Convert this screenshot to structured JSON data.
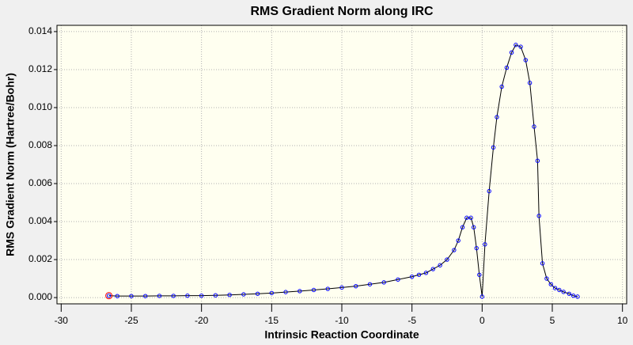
{
  "chart_data": {
    "type": "line",
    "title": "RMS Gradient Norm along IRC",
    "xlabel": "Intrinsic Reaction Coordinate",
    "ylabel": "RMS Gradient Norm (Hartree/Bohr)",
    "x": [
      -26.6,
      -26,
      -25,
      -24,
      -23,
      -22,
      -21,
      -20,
      -19,
      -18,
      -17,
      -16,
      -15,
      -14,
      -13,
      -12,
      -11,
      -10,
      -9,
      -8,
      -7,
      -6,
      -5,
      -4.5,
      -4,
      -3.5,
      -3,
      -2.5,
      -2,
      -1.7,
      -1.4,
      -1.1,
      -0.8,
      -0.6,
      -0.4,
      -0.2,
      0,
      0.2,
      0.5,
      0.8,
      1.05,
      1.4,
      1.75,
      2.1,
      2.4,
      2.75,
      3.1,
      3.4,
      3.7,
      3.95,
      4.05,
      4.3,
      4.6,
      4.9,
      5.2,
      5.5,
      5.8,
      6.2,
      6.5,
      6.8
    ],
    "series": [
      {
        "name": "RMS Gradient Norm",
        "color": "#0000ff",
        "line_color": "#000000",
        "values": [
          0.0001,
          8e-05,
          8e-05,
          8e-05,
          9e-05,
          9e-05,
          0.0001,
          0.0001,
          0.00012,
          0.00014,
          0.00017,
          0.0002,
          0.00024,
          0.00029,
          0.00034,
          0.0004,
          0.00046,
          0.00053,
          0.0006,
          0.0007,
          0.0008,
          0.00095,
          0.0011,
          0.0012,
          0.0013,
          0.0015,
          0.0017,
          0.002,
          0.0025,
          0.003,
          0.0037,
          0.0042,
          0.0042,
          0.0037,
          0.0026,
          0.0012,
          5e-05,
          0.0028,
          0.0056,
          0.0079,
          0.0095,
          0.0111,
          0.0121,
          0.0129,
          0.0133,
          0.0132,
          0.0125,
          0.0113,
          0.009,
          0.0072,
          0.0043,
          0.0018,
          0.001,
          0.0007,
          0.0005,
          0.0004,
          0.0003,
          0.0002,
          0.0001,
          5e-05
        ]
      }
    ],
    "highlight_color": "#ff0000",
    "xlim": [
      -30.3,
      10.3
    ],
    "xticks": [
      -30,
      -25,
      -20,
      -15,
      -10,
      -5,
      0,
      5,
      10
    ],
    "ylim": [
      -0.00033,
      0.01433
    ],
    "yticks": [
      {
        "value": 0,
        "label": "0.000"
      },
      {
        "value": 0.002,
        "label": "0.002"
      },
      {
        "value": 0.004,
        "label": "0.004"
      },
      {
        "value": 0.006,
        "label": "0.006"
      },
      {
        "value": 0.008,
        "label": "0.008"
      },
      {
        "value": 0.01,
        "label": "0.010"
      },
      {
        "value": 0.012,
        "label": "0.012"
      },
      {
        "value": 0.014,
        "label": "0.014"
      }
    ],
    "grid": true,
    "background": "#fffff0"
  }
}
